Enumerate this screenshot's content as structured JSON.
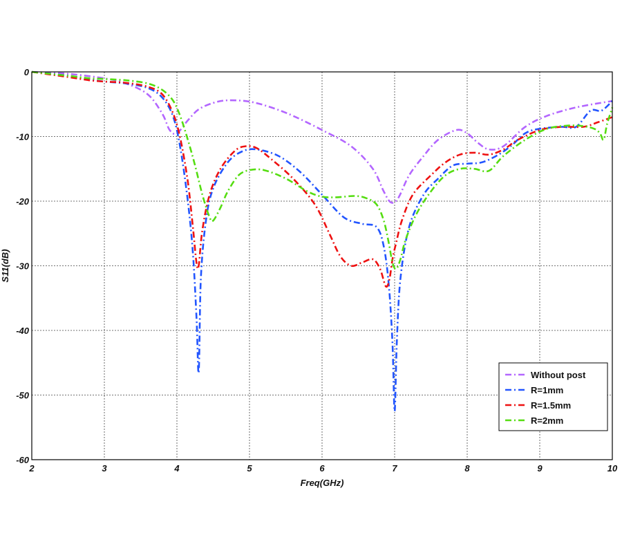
{
  "chart_data": {
    "type": "line",
    "title": "",
    "xlabel": "Freq(GHz)",
    "ylabel": "S11(dB)",
    "xlim": [
      2,
      10
    ],
    "ylim": [
      -60,
      0
    ],
    "xticks": [
      "2",
      "3",
      "4",
      "5",
      "6",
      "7",
      "8",
      "9",
      "10"
    ],
    "yticks": [
      "0",
      "-10",
      "-20",
      "-30",
      "-40",
      "-50",
      "-60"
    ],
    "grid": true,
    "legend_position": "bottom-right",
    "series": [
      {
        "name": "Without post",
        "color": "#b366ff",
        "x": [
          2,
          2.5,
          3,
          3.3,
          3.6,
          3.8,
          3.9,
          4.0,
          4.15,
          4.3,
          4.5,
          4.7,
          5.0,
          5.3,
          5.6,
          6.0,
          6.4,
          6.7,
          6.85,
          6.95,
          7.05,
          7.2,
          7.4,
          7.6,
          7.85,
          8.0,
          8.15,
          8.3,
          8.5,
          8.8,
          9.1,
          9.5,
          10.0
        ],
        "y": [
          0,
          -0.3,
          -1.0,
          -1.8,
          -3.5,
          -6.5,
          -9.0,
          -9.5,
          -7.5,
          -5.8,
          -4.8,
          -4.4,
          -4.6,
          -5.5,
          -6.8,
          -9.0,
          -11.5,
          -15.0,
          -18.5,
          -20.2,
          -19.5,
          -16.0,
          -13.0,
          -10.5,
          -9.0,
          -9.5,
          -11.0,
          -12.0,
          -11.5,
          -8.5,
          -6.8,
          -5.5,
          -4.5
        ]
      },
      {
        "name": "R=1mm",
        "color": "#2255ff",
        "x": [
          2,
          2.5,
          2.8,
          3.0,
          3.3,
          3.6,
          3.8,
          3.95,
          4.05,
          4.15,
          4.22,
          4.27,
          4.3,
          4.33,
          4.4,
          4.5,
          4.7,
          4.9,
          5.1,
          5.4,
          5.7,
          6.0,
          6.3,
          6.55,
          6.75,
          6.85,
          6.92,
          6.97,
          7.0,
          7.03,
          7.08,
          7.2,
          7.4,
          7.6,
          7.8,
          8.0,
          8.2,
          8.4,
          8.6,
          8.8,
          9.0,
          9.3,
          9.5,
          9.7,
          9.85,
          10.0
        ],
        "y": [
          0,
          -0.6,
          -1.2,
          -1.5,
          -1.8,
          -2.5,
          -4.0,
          -7.0,
          -12.0,
          -20.0,
          -28.0,
          -38.0,
          -46.5,
          -32.0,
          -23.0,
          -18.0,
          -14.0,
          -12.3,
          -12.0,
          -13.0,
          -15.5,
          -19.0,
          -22.5,
          -23.5,
          -24.0,
          -27.0,
          -33.0,
          -42.0,
          -52.5,
          -42.0,
          -32.0,
          -24.0,
          -19.0,
          -16.5,
          -14.5,
          -14.2,
          -14.0,
          -13.0,
          -11.5,
          -9.5,
          -8.8,
          -8.5,
          -8.5,
          -6.0,
          -6.0,
          -4.5
        ]
      },
      {
        "name": "R=1.5mm",
        "color": "#ee1111",
        "x": [
          2,
          2.5,
          2.8,
          3.0,
          3.3,
          3.6,
          3.8,
          3.95,
          4.05,
          4.15,
          4.22,
          4.27,
          4.3,
          4.35,
          4.45,
          4.6,
          4.8,
          4.95,
          5.1,
          5.3,
          5.6,
          5.9,
          6.1,
          6.25,
          6.4,
          6.55,
          6.7,
          6.8,
          6.88,
          6.93,
          6.97,
          7.02,
          7.1,
          7.25,
          7.5,
          7.7,
          7.9,
          8.1,
          8.3,
          8.5,
          8.7,
          9.0,
          9.3,
          9.6,
          9.8,
          10.0
        ],
        "y": [
          0,
          -0.8,
          -1.3,
          -1.5,
          -1.7,
          -2.3,
          -3.5,
          -6.5,
          -10.5,
          -17.0,
          -24.0,
          -29.5,
          -30.0,
          -24.5,
          -19.0,
          -15.0,
          -12.2,
          -11.5,
          -11.8,
          -13.5,
          -16.5,
          -20.5,
          -25.0,
          -28.5,
          -30.0,
          -29.5,
          -29.0,
          -30.5,
          -33.2,
          -32.0,
          -29.0,
          -26.5,
          -23.0,
          -19.0,
          -16.0,
          -14.0,
          -12.8,
          -12.5,
          -12.8,
          -12.0,
          -10.5,
          -9.0,
          -8.5,
          -8.5,
          -7.8,
          -7.0
        ]
      },
      {
        "name": "R=2mm",
        "color": "#55dd11",
        "x": [
          2,
          2.5,
          2.8,
          3.0,
          3.3,
          3.6,
          3.8,
          3.95,
          4.05,
          4.15,
          4.25,
          4.35,
          4.45,
          4.5,
          4.6,
          4.7,
          4.85,
          5.0,
          5.2,
          5.5,
          5.8,
          6.0,
          6.2,
          6.45,
          6.6,
          6.75,
          6.85,
          6.92,
          6.97,
          7.02,
          7.08,
          7.15,
          7.3,
          7.5,
          7.7,
          7.9,
          8.1,
          8.3,
          8.5,
          8.8,
          9.1,
          9.4,
          9.6,
          9.75,
          9.83,
          9.88,
          9.93,
          10.0
        ],
        "y": [
          0,
          -0.6,
          -1.0,
          -1.1,
          -1.3,
          -1.8,
          -2.8,
          -4.5,
          -7.0,
          -10.5,
          -14.5,
          -19.0,
          -22.5,
          -23.0,
          -21.0,
          -18.5,
          -16.0,
          -15.2,
          -15.2,
          -16.5,
          -18.5,
          -19.3,
          -19.4,
          -19.2,
          -19.5,
          -20.5,
          -23.0,
          -26.5,
          -29.5,
          -30.5,
          -29.0,
          -26.0,
          -22.0,
          -18.5,
          -16.0,
          -15.0,
          -15.0,
          -15.3,
          -13.0,
          -10.5,
          -8.8,
          -8.3,
          -8.4,
          -8.8,
          -9.5,
          -10.5,
          -8.0,
          -5.5
        ]
      }
    ]
  }
}
